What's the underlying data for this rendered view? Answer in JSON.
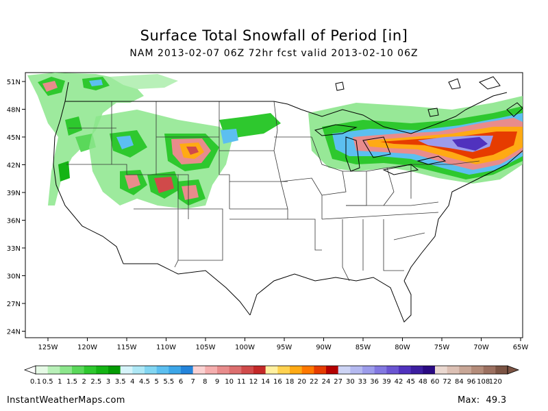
{
  "title": "Surface Total Snowfall of Period [in]",
  "subtitle": "NAM 2013-02-07 06Z 72hr fcst valid 2013-02-10 06Z",
  "lat_labels": [
    "51N",
    "48N",
    "45N",
    "42N",
    "39N",
    "36N",
    "33N",
    "30N",
    "27N",
    "24N"
  ],
  "lon_labels": [
    "125W",
    "120W",
    "115W",
    "110W",
    "105W",
    "100W",
    "95W",
    "90W",
    "85W",
    "80W",
    "75W",
    "70W",
    "65W"
  ],
  "colorbar": {
    "labels": [
      "0.1",
      "0.5",
      "1",
      "1.5",
      "2",
      "2.5",
      "3",
      "3.5",
      "4",
      "4.5",
      "5",
      "5.5",
      "6",
      "7",
      "8",
      "9",
      "10",
      "11",
      "12",
      "14",
      "16",
      "18",
      "20",
      "22",
      "24",
      "27",
      "30",
      "33",
      "36",
      "39",
      "42",
      "45",
      "48",
      "60",
      "72",
      "84",
      "96",
      "108",
      "120"
    ],
    "colors": [
      "#e6fae6",
      "#b8f0b8",
      "#8ce68c",
      "#5ad85a",
      "#2ec82e",
      "#14b414",
      "#049b04",
      "#d6f4fa",
      "#aee8f6",
      "#82d6f2",
      "#5cbff0",
      "#3ca6e8",
      "#2384db",
      "#fad2d2",
      "#f5aeae",
      "#e88c8c",
      "#dc6e6e",
      "#d04a4a",
      "#c42828",
      "#fff0a0",
      "#ffd250",
      "#ffaa14",
      "#ff7800",
      "#e63c00",
      "#b40000",
      "#cdd4f5",
      "#b4b9f0",
      "#9c9ceb",
      "#8278e1",
      "#6a55d2",
      "#5032be",
      "#3c1ea0",
      "#2a0a82",
      "#ead8d0",
      "#dcc0b4",
      "#c8a696",
      "#b48c7a",
      "#9c7060",
      "#7c5444"
    ]
  },
  "footer": {
    "site": "InstantWeatherMaps.com",
    "max_label": "Max:",
    "max_value": "49.3"
  },
  "colors": {
    "coast": "#000000",
    "state_lines": "#333333"
  }
}
